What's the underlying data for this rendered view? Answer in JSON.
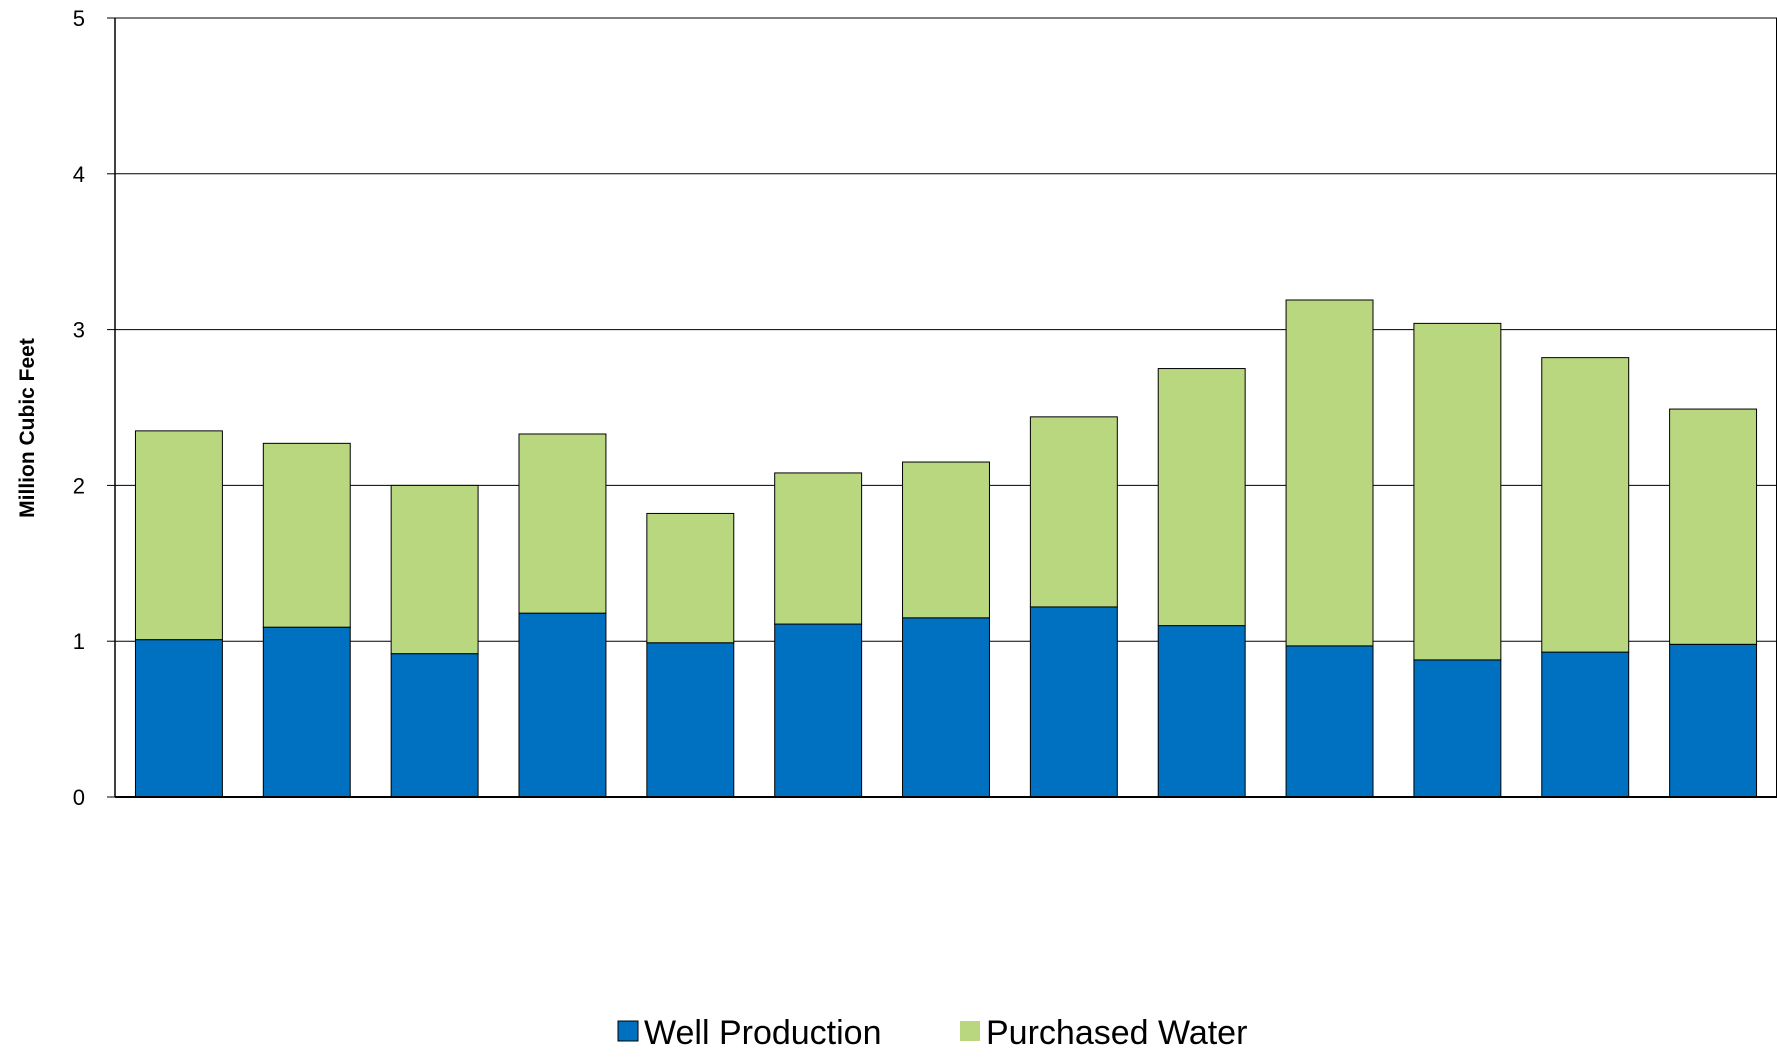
{
  "chart_data": {
    "type": "bar",
    "stacked": true,
    "title": "",
    "xlabel": "",
    "ylabel": "Million Cubic Feet",
    "ylim": [
      0,
      5
    ],
    "yticks": [
      "0",
      "1",
      "2",
      "3",
      "4",
      "5"
    ],
    "grid": true,
    "legend_position": "bottom",
    "categories": [
      "",
      "",
      "",
      "",
      "",
      "",
      "",
      "",
      "",
      "",
      "",
      "",
      ""
    ],
    "series": [
      {
        "name": "Well Production",
        "color": "#0070C0",
        "values": [
          1.01,
          1.09,
          0.92,
          1.18,
          0.99,
          1.11,
          1.15,
          1.22,
          1.1,
          0.97,
          0.88,
          0.93,
          0.98
        ]
      },
      {
        "name": "Purchased Water",
        "color": "#B9D77E",
        "values": [
          1.34,
          1.18,
          1.08,
          1.15,
          0.83,
          0.97,
          1.0,
          1.22,
          1.65,
          2.22,
          2.16,
          1.89,
          1.51
        ]
      }
    ]
  }
}
